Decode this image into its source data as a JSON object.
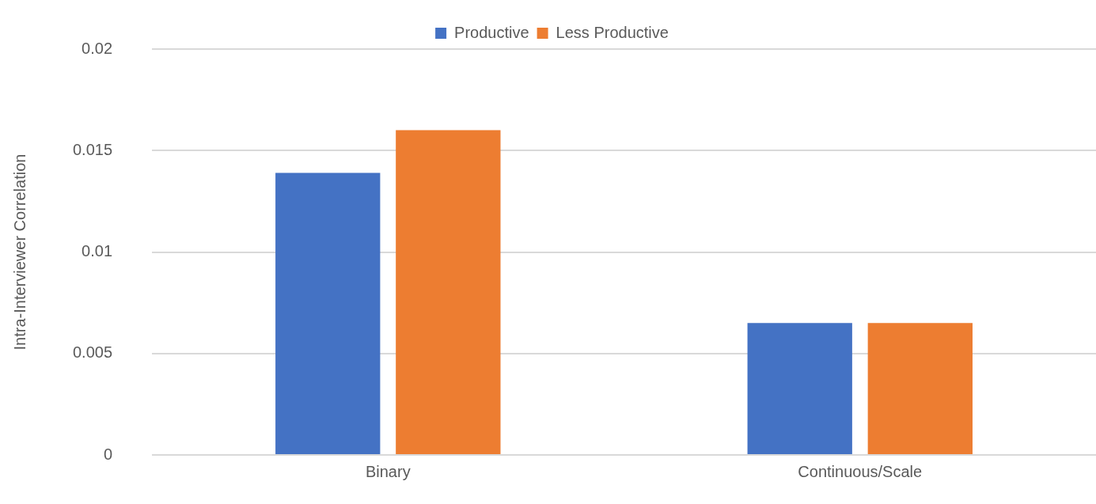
{
  "chart_data": {
    "type": "bar",
    "ylabel": "Intra-Interviewer Correlation",
    "categories": [
      "Binary",
      "Continuous/Scale"
    ],
    "series": [
      {
        "name": "Productive",
        "color": "#4472c4",
        "values": [
          0.0139,
          0.0065
        ]
      },
      {
        "name": "Less Productive",
        "color": "#ed7d31",
        "values": [
          0.016,
          0.0065
        ]
      }
    ],
    "ylim": [
      0,
      0.02
    ],
    "yticks": [
      0,
      0.005,
      0.01,
      0.015,
      0.02
    ],
    "grid": "y",
    "legend": "top"
  }
}
